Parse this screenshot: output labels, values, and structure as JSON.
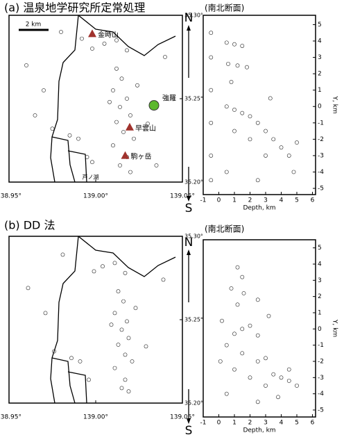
{
  "chart_data": [
    {
      "type": "map",
      "title": "(a) 温泉地学研究所定常処理",
      "title_color": "#000000",
      "scale_label": "2 km",
      "x": [
        139.005,
        139.012,
        138.998,
        139.018,
        138.992,
        139.012,
        139.015,
        139.01,
        139.018,
        139.014,
        139.02,
        139.012,
        139.016,
        139.022,
        139.01,
        139.018,
        139.014,
        139.02,
        139.008,
        139.024,
        138.985,
        138.99,
        138.975,
        138.995,
        138.998,
        138.96,
        138.97,
        139.04,
        139.035,
        138.98,
        139.03,
        138.965
      ],
      "y": [
        35.283,
        35.285,
        35.28,
        35.279,
        35.286,
        35.268,
        35.262,
        35.255,
        35.25,
        35.245,
        35.24,
        35.236,
        35.23,
        35.226,
        35.222,
        35.215,
        35.21,
        35.206,
        35.248,
        35.258,
        35.228,
        35.226,
        35.232,
        35.215,
        35.212,
        35.27,
        35.255,
        35.275,
        35.21,
        35.29,
        35.235,
        35.24
      ],
      "xlim": [
        138.95,
        139.05
      ],
      "ylim": [
        35.2,
        35.3
      ],
      "xticks": [
        {
          "value": 138.95,
          "label": "138.95°"
        },
        {
          "value": 139.0,
          "label": "139.00°"
        },
        {
          "value": 139.05,
          "label": "139.05°"
        }
      ],
      "yticks": [
        {
          "value": 35.2,
          "label": "35.20°"
        },
        {
          "value": 35.25,
          "label": "35.25°"
        },
        {
          "value": 35.3,
          "label": "35.30°"
        }
      ],
      "places": [
        {
          "name": "金時山",
          "lon": 138.998,
          "lat": 35.289,
          "marker": "triangle",
          "color": "#a0322d"
        },
        {
          "name": "早雲山",
          "lon": 139.0196,
          "lat": 35.233,
          "marker": "triangle",
          "color": "#a0322d"
        },
        {
          "name": "駒ヶ岳",
          "lon": 139.017,
          "lat": 35.216,
          "marker": "triangle",
          "color": "#a0322d"
        },
        {
          "name": "強羅",
          "lon": 139.0336,
          "lat": 35.246,
          "marker": "circle",
          "color": "#5cb82e"
        }
      ],
      "lake": {
        "name": "芦ノ湖",
        "lon": 138.997,
        "lat": 35.203,
        "color": "#3a6fb5"
      }
    },
    {
      "type": "scatter",
      "title": "(南北断面)",
      "x_label": "Depth, km",
      "y_label": "Y, km",
      "north": "N",
      "south": "S",
      "x": [
        -0.5,
        -0.5,
        -0.5,
        -0.5,
        -0.5,
        -0.5,
        0.5,
        1,
        1.5,
        0.6,
        1.2,
        1.8,
        0.5,
        1,
        1.5,
        2,
        2.5,
        3,
        3.5,
        4,
        4.5,
        3,
        2,
        1,
        5,
        0.5,
        2.5,
        4.8,
        3.3,
        0.8
      ],
      "y": [
        4.5,
        3,
        1,
        -1,
        -3,
        -4.5,
        3.9,
        3.8,
        3.7,
        2.6,
        2.5,
        2.4,
        0,
        -0.2,
        -0.4,
        -0.6,
        -1,
        -1.5,
        -2,
        -2.5,
        -3,
        -3,
        -2,
        -1.5,
        -2.2,
        -4,
        -4.5,
        -4,
        0.5,
        1.5
      ],
      "xlim": [
        -1,
        6.2
      ],
      "ylim": [
        -5.38,
        5.57
      ],
      "xticks": [
        -1,
        0,
        1,
        2,
        3,
        4,
        5,
        6
      ],
      "yticks": [
        -5,
        -4,
        -3,
        -2,
        -1,
        0,
        1,
        2,
        3,
        4,
        5
      ]
    },
    {
      "type": "map",
      "title": "(b) DD 法",
      "title_color": "#e0201b",
      "x": [
        139.004,
        139.011,
        138.999,
        139.017,
        139.013,
        139.016,
        139.011,
        139.018,
        139.015,
        139.019,
        139.013,
        139.017,
        139.021,
        139.011,
        139.017,
        139.015,
        139.019,
        139.009,
        139.023,
        138.986,
        138.991,
        138.976,
        138.996,
        138.961,
        138.971,
        139.039,
        138.981,
        139.029
      ],
      "y": [
        35.282,
        35.284,
        35.279,
        35.278,
        35.267,
        35.261,
        35.254,
        35.249,
        35.244,
        35.239,
        35.235,
        35.229,
        35.225,
        35.221,
        35.214,
        35.209,
        35.207,
        35.247,
        35.257,
        35.227,
        35.225,
        35.231,
        35.214,
        35.269,
        35.254,
        35.274,
        35.289,
        35.234
      ],
      "xlim": [
        138.95,
        139.05
      ],
      "ylim": [
        35.2,
        35.3
      ],
      "xticks": [
        {
          "value": 138.95,
          "label": "138.95°"
        },
        {
          "value": 139.0,
          "label": "139.00°"
        },
        {
          "value": 139.05,
          "label": "139.05°"
        }
      ],
      "yticks": [
        {
          "value": 35.2,
          "label": "35.20°"
        },
        {
          "value": 35.25,
          "label": "35.25°"
        },
        {
          "value": 35.3,
          "label": "35.30°"
        }
      ]
    },
    {
      "type": "scatter",
      "title": "(南北断面)",
      "x_label": "Depth, km",
      "y_label": "Y, km",
      "north": "N",
      "south": "S",
      "x": [
        1.2,
        1.5,
        0.8,
        1.6,
        1.2,
        2.5,
        1.5,
        2,
        1,
        2.5,
        0.5,
        1.5,
        2.5,
        3,
        3.5,
        4,
        4.5,
        3,
        2,
        1,
        0.2,
        5,
        3.8,
        0.5,
        2.5,
        0.1,
        3.2,
        4.5
      ],
      "y": [
        3.8,
        3.2,
        2.5,
        2.2,
        1.5,
        1.8,
        0,
        0.2,
        -0.3,
        -0.4,
        -1,
        -1.5,
        -2,
        -1.8,
        -2.8,
        -3,
        -3.2,
        -3.5,
        -3,
        -2.5,
        0.5,
        -3.5,
        -4.2,
        -4,
        -4.5,
        -2,
        0.8,
        -2.5
      ],
      "xlim": [
        -1,
        6.2
      ],
      "ylim": [
        -5.43,
        5.5
      ],
      "xticks": [
        -1,
        0,
        1,
        2,
        3,
        4,
        5,
        6
      ],
      "yticks": [
        -5,
        -4,
        -3,
        -2,
        -1,
        0,
        1,
        2,
        3,
        4,
        5
      ]
    }
  ]
}
